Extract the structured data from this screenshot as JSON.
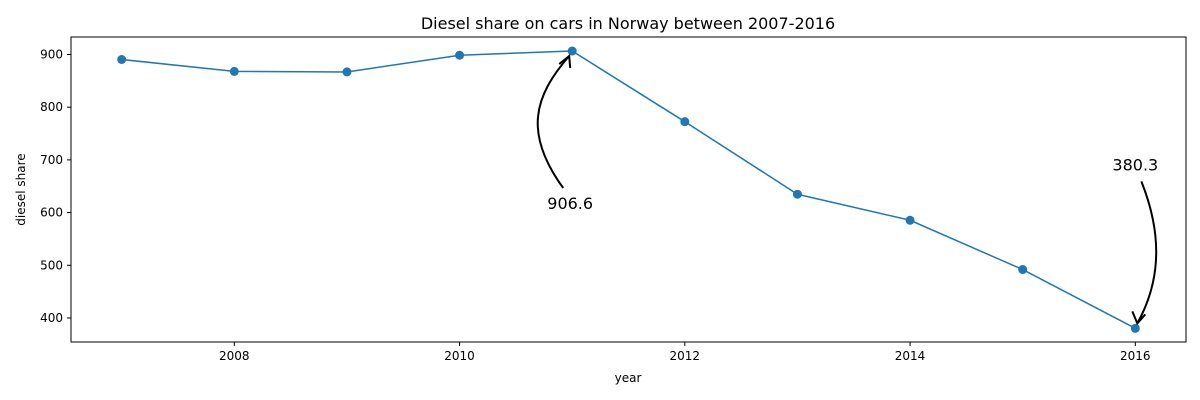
{
  "chart_data": {
    "type": "line",
    "title": "Diesel share on cars in Norway between 2007-2016",
    "xlabel": "year",
    "ylabel": "diesel share",
    "x": [
      2007,
      2008,
      2009,
      2010,
      2011,
      2012,
      2013,
      2014,
      2015,
      2016
    ],
    "series": [
      {
        "values": [
          890.5,
          867.9,
          866.9,
          898.6,
          906.6,
          772.5,
          634.8,
          585.4,
          491.9,
          380.3
        ],
        "color": "#1f77b4",
        "marker": "circle"
      }
    ],
    "xlim": [
      2006.55,
      2016.45
    ],
    "ylim": [
      354.4,
      933.2
    ],
    "xticks": [
      2008,
      2010,
      2012,
      2014,
      2016
    ],
    "yticks": [
      400,
      500,
      600,
      700,
      800,
      900
    ],
    "grid": false,
    "annotations": [
      {
        "text": "906.6",
        "x": 2011,
        "y": 906.6
      },
      {
        "text": "380.3",
        "x": 2016,
        "y": 380.3
      }
    ]
  }
}
